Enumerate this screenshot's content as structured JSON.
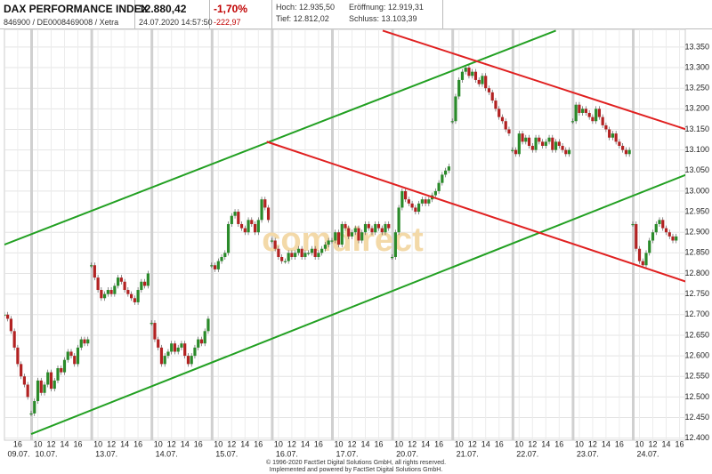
{
  "header": {
    "name": "DAX PERFORMANCE INDEX",
    "ids": "846900 / DE0008469008 / Xetra",
    "price": "12.880,42",
    "timestamp": "24.07.2020 14:57:50",
    "change_pct": "-1,70%",
    "change_abs": "-222,97",
    "high": "Hoch: 12.935,50",
    "low": "Tief: 12.812,02",
    "open": "Eröffnung: 12.919,31",
    "close": "Schluss: 13.103,39"
  },
  "chart_data": {
    "type": "candlestick",
    "watermark": "comdirect",
    "up_color": "#2a8a2a",
    "down_color": "#b22222",
    "ylim": [
      12395,
      13393
    ],
    "yticks": [
      {
        "value": 12400,
        "label": "12.400"
      },
      {
        "value": 12450,
        "label": "12.450"
      },
      {
        "value": 12500,
        "label": "12.500"
      },
      {
        "value": 12550,
        "label": "12.550"
      },
      {
        "value": 12600,
        "label": "12.600"
      },
      {
        "value": 12650,
        "label": "12.650"
      },
      {
        "value": 12700,
        "label": "12.700"
      },
      {
        "value": 12750,
        "label": "12.750"
      },
      {
        "value": 12800,
        "label": "12.800"
      },
      {
        "value": 12850,
        "label": "12.850"
      },
      {
        "value": 12900,
        "label": "12.900"
      },
      {
        "value": 12950,
        "label": "12.950"
      },
      {
        "value": 13000,
        "label": "13.000"
      },
      {
        "value": 13050,
        "label": "13.050"
      },
      {
        "value": 13100,
        "label": "13.100"
      },
      {
        "value": 13150,
        "label": "13.150"
      },
      {
        "value": 13200,
        "label": "13.200"
      },
      {
        "value": 13250,
        "label": "13.250"
      },
      {
        "value": 13300,
        "label": "13.300"
      },
      {
        "value": 13350,
        "label": "13.350"
      }
    ],
    "hour_ticks": [
      10,
      12,
      14,
      16
    ],
    "grid": true,
    "days": [
      {
        "label": "09.07.",
        "values": [
          null,
          null,
          null,
          null,
          null,
          null,
          null,
          null,
          null,
          null,
          12700,
          12690,
          12660,
          12620,
          12580,
          12550,
          12530,
          12500
        ]
      },
      {
        "label": "10.07.",
        "values": [
          12460,
          12490,
          12540,
          12510,
          12530,
          12560,
          12520,
          12540,
          12570,
          12560,
          12590,
          12610,
          12600,
          12580,
          12620,
          12640,
          12630,
          12640
        ]
      },
      {
        "label": "13.07.",
        "values": [
          12820,
          12790,
          12760,
          12740,
          12750,
          12760,
          12750,
          12770,
          12790,
          12780,
          12760,
          12750,
          12740,
          12730,
          12760,
          12780,
          12770,
          12800
        ]
      },
      {
        "label": "14.07.",
        "values": [
          12680,
          12640,
          12620,
          12580,
          12600,
          12610,
          12630,
          12610,
          12620,
          12630,
          12600,
          12580,
          12600,
          12620,
          12640,
          12630,
          12660,
          12690
        ]
      },
      {
        "label": "15.07.",
        "values": [
          12820,
          12810,
          12830,
          12840,
          12850,
          12920,
          12940,
          12950,
          12920,
          12910,
          12900,
          12930,
          12920,
          12900,
          12930,
          12980,
          12960,
          12930
        ]
      },
      {
        "label": "16.07.",
        "values": [
          12880,
          12860,
          12840,
          12830,
          12830,
          12850,
          12840,
          12850,
          12860,
          12840,
          12850,
          12850,
          12860,
          12840,
          12850,
          12860,
          12870,
          12880
        ]
      },
      {
        "label": "17.07.",
        "values": [
          12880,
          12900,
          12870,
          12920,
          12910,
          12890,
          12900,
          12910,
          12880,
          12900,
          12920,
          12910,
          12900,
          12920,
          12910,
          12900,
          12920,
          12910
        ]
      },
      {
        "label": "20.07.",
        "values": [
          12840,
          12900,
          12960,
          13000,
          12980,
          12970,
          12960,
          12950,
          12970,
          12980,
          12970,
          12980,
          12990,
          13000,
          13020,
          13040,
          13050,
          13060
        ]
      },
      {
        "label": "21.07.",
        "values": [
          13170,
          13230,
          13270,
          13290,
          13300,
          13280,
          13290,
          13270,
          13260,
          13280,
          13250,
          13240,
          13220,
          13200,
          13180,
          13170,
          13150,
          13140
        ]
      },
      {
        "label": "22.07.",
        "values": [
          13100,
          13090,
          13140,
          13120,
          13130,
          13110,
          13100,
          13130,
          13120,
          13110,
          13120,
          13130,
          13100,
          13120,
          13110,
          13100,
          13090,
          13100
        ]
      },
      {
        "label": "23.07.",
        "values": [
          13170,
          13210,
          13190,
          13200,
          13190,
          13180,
          13170,
          13200,
          13180,
          13160,
          13150,
          13130,
          13140,
          13120,
          13110,
          13100,
          13090,
          13100
        ]
      },
      {
        "label": "24.07.",
        "values": [
          12920,
          12860,
          12830,
          12820,
          12850,
          12880,
          12900,
          12920,
          12930,
          12910,
          12900,
          12890,
          12880,
          12890,
          null,
          null,
          null,
          null
        ]
      }
    ],
    "trendlines": [
      {
        "color": "#22a022",
        "start": {
          "day": 0,
          "hour": 14,
          "value": 12870
        },
        "end": {
          "day": 9,
          "hour": 15.5,
          "value": 13390
        }
      },
      {
        "color": "#22a022",
        "start": {
          "day": 1,
          "hour": 9,
          "value": 12410
        },
        "end": {
          "day": 11,
          "hour": 17,
          "value": 13040
        }
      },
      {
        "color": "#e02020",
        "start": {
          "day": 6,
          "hour": 16.6,
          "value": 13390
        },
        "end": {
          "day": 11,
          "hour": 17,
          "value": 13150
        }
      },
      {
        "color": "#e02020",
        "start": {
          "day": 4,
          "hour": 17.25,
          "value": 13120
        },
        "end": {
          "day": 11,
          "hour": 17,
          "value": 12780
        }
      }
    ]
  },
  "footer": {
    "line1": "© 1996-2020 FactSet Digital Solutions GmbH, all rights reserved.",
    "line2": "Implemented and powered by FactSet Digital Solutions GmbH."
  }
}
